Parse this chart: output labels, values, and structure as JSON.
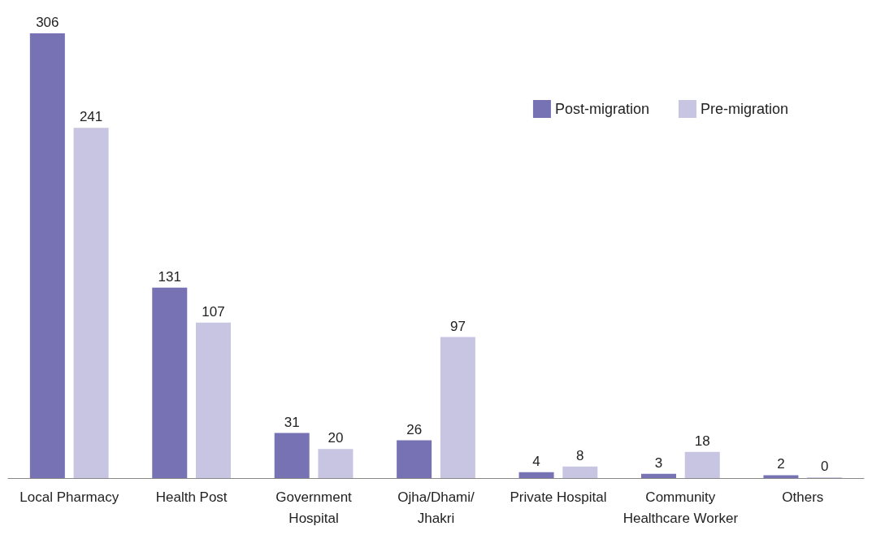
{
  "chart_data": {
    "type": "bar",
    "categories": [
      "Local Pharmacy",
      "Health Post",
      "Government\nHospital",
      "Ojha/Dhami/\nJhakri",
      "Private Hospital",
      "Community\nHealthcare Worker",
      "Others"
    ],
    "series": [
      {
        "name": "Post-migration",
        "color": "#7672b4",
        "values": [
          306,
          131,
          31,
          26,
          4,
          3,
          2
        ]
      },
      {
        "name": "Pre-migration",
        "color": "#c8c5e2",
        "values": [
          241,
          107,
          20,
          97,
          8,
          18,
          0
        ]
      }
    ],
    "data_labels": true,
    "legend": "top right"
  }
}
